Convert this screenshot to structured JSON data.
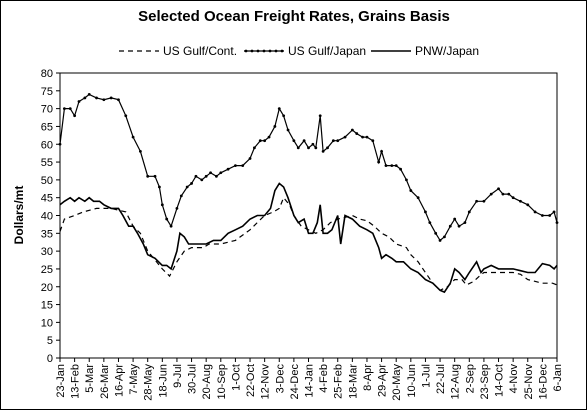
{
  "chart_data": {
    "type": "line",
    "title": "Selected Ocean Freight Rates, Grains Basis",
    "ylabel": "Dollars/mt",
    "xlabel": "",
    "ylim": [
      0,
      80
    ],
    "yticks": [
      0,
      5,
      10,
      15,
      20,
      25,
      30,
      35,
      40,
      45,
      50,
      55,
      60,
      65,
      70,
      75,
      80
    ],
    "grid": false,
    "legend": "top",
    "categories": [
      "23-Jan",
      "13-Feb",
      "5-Mar",
      "26-Mar",
      "16-Apr",
      "7-May",
      "28-May",
      "18-Jun",
      "9-Jul",
      "30-Jul",
      "20-Aug",
      "10-Sep",
      "1-Oct",
      "22-Oct",
      "12-Nov",
      "3-Dec",
      "24-Dec",
      "14-Jan",
      "4-Feb",
      "25-Feb",
      "18-Mar",
      "8-Apr",
      "29-Apr",
      "20-May",
      "10-Jun",
      "1-Jul",
      "22-Jul",
      "12-Aug",
      "2-Sep",
      "23-Sep",
      "14-Oct",
      "4-Nov",
      "25-Nov",
      "16-Dec",
      "6-Jan"
    ],
    "series": [
      {
        "name": "US Gulf/Cont.",
        "style": "dashed",
        "color": "#000000",
        "values": [
          [
            0,
            35.5
          ],
          [
            0.3,
            39
          ],
          [
            1,
            40
          ],
          [
            1.6,
            41
          ],
          [
            2.5,
            42
          ],
          [
            3.5,
            42
          ],
          [
            4.5,
            41
          ],
          [
            5,
            37
          ],
          [
            5.5,
            35
          ],
          [
            6,
            30
          ],
          [
            6.6,
            27
          ],
          [
            7,
            25
          ],
          [
            7.5,
            23
          ],
          [
            8,
            27
          ],
          [
            8.5,
            30
          ],
          [
            9,
            31
          ],
          [
            9.8,
            31
          ],
          [
            10.2,
            32
          ],
          [
            11,
            32
          ],
          [
            12,
            33
          ],
          [
            13,
            36
          ],
          [
            13.5,
            38
          ],
          [
            14,
            40
          ],
          [
            14.6,
            41
          ],
          [
            15,
            42
          ],
          [
            15.3,
            45
          ],
          [
            15.7,
            43
          ],
          [
            16,
            40
          ],
          [
            16.5,
            37
          ],
          [
            17,
            36
          ],
          [
            17.5,
            35
          ],
          [
            18,
            36
          ],
          [
            18.5,
            38
          ],
          [
            19,
            39
          ],
          [
            20,
            40
          ],
          [
            20.5,
            39
          ],
          [
            21,
            38.5
          ],
          [
            21.5,
            37
          ],
          [
            22,
            35
          ],
          [
            22.5,
            34
          ],
          [
            23,
            32
          ],
          [
            23.7,
            31
          ],
          [
            24,
            29
          ],
          [
            24.5,
            27
          ],
          [
            25,
            24
          ],
          [
            25.5,
            21
          ],
          [
            26,
            19
          ],
          [
            26.5,
            20
          ],
          [
            27,
            22
          ],
          [
            27.5,
            22
          ],
          [
            27.8,
            20.5
          ],
          [
            28.3,
            21.5
          ],
          [
            28.7,
            23
          ],
          [
            29,
            24
          ],
          [
            29.5,
            24
          ],
          [
            30,
            24
          ],
          [
            31,
            24
          ],
          [
            31.5,
            23.5
          ],
          [
            32,
            22
          ],
          [
            33,
            21
          ],
          [
            33.7,
            21
          ],
          [
            34,
            20.5
          ]
        ]
      },
      {
        "name": "US Gulf/Japan",
        "style": "marked",
        "color": "#000000",
        "values": [
          [
            0,
            60
          ],
          [
            0.3,
            70
          ],
          [
            0.7,
            70
          ],
          [
            1,
            68
          ],
          [
            1.3,
            72
          ],
          [
            1.7,
            73
          ],
          [
            2,
            74
          ],
          [
            2.5,
            73
          ],
          [
            3,
            72.5
          ],
          [
            3.5,
            73
          ],
          [
            4,
            72.5
          ],
          [
            4.5,
            68
          ],
          [
            5,
            62
          ],
          [
            5.5,
            58
          ],
          [
            6,
            51
          ],
          [
            6.5,
            51
          ],
          [
            6.8,
            48
          ],
          [
            7,
            43
          ],
          [
            7.3,
            39
          ],
          [
            7.6,
            37
          ],
          [
            8,
            42
          ],
          [
            8.3,
            45.5
          ],
          [
            8.7,
            48
          ],
          [
            9,
            49
          ],
          [
            9.3,
            51
          ],
          [
            9.7,
            50
          ],
          [
            10,
            51
          ],
          [
            10.3,
            52
          ],
          [
            10.7,
            51
          ],
          [
            11,
            52
          ],
          [
            11.5,
            53
          ],
          [
            12,
            54
          ],
          [
            12.5,
            54
          ],
          [
            13,
            56
          ],
          [
            13.3,
            59
          ],
          [
            13.7,
            61
          ],
          [
            14,
            61
          ],
          [
            14.3,
            62
          ],
          [
            14.7,
            65
          ],
          [
            15,
            70
          ],
          [
            15.3,
            68
          ],
          [
            15.6,
            64
          ],
          [
            16,
            61
          ],
          [
            16.3,
            59
          ],
          [
            16.7,
            61
          ],
          [
            17,
            59
          ],
          [
            17.3,
            60
          ],
          [
            17.5,
            59
          ],
          [
            17.8,
            68
          ],
          [
            18,
            58
          ],
          [
            18.3,
            59
          ],
          [
            18.7,
            61
          ],
          [
            19,
            61
          ],
          [
            19.5,
            62
          ],
          [
            20,
            64
          ],
          [
            20.3,
            63
          ],
          [
            20.7,
            62
          ],
          [
            21,
            62
          ],
          [
            21.4,
            61
          ],
          [
            21.8,
            55
          ],
          [
            22,
            58
          ],
          [
            22.3,
            54
          ],
          [
            22.7,
            54
          ],
          [
            23,
            54
          ],
          [
            23.3,
            53
          ],
          [
            23.7,
            50
          ],
          [
            24,
            47
          ],
          [
            24.5,
            45
          ],
          [
            25,
            41
          ],
          [
            25.3,
            38
          ],
          [
            25.7,
            35
          ],
          [
            26,
            33
          ],
          [
            26.3,
            34
          ],
          [
            26.7,
            37
          ],
          [
            27,
            39
          ],
          [
            27.3,
            37
          ],
          [
            27.7,
            38
          ],
          [
            28,
            41
          ],
          [
            28.5,
            44
          ],
          [
            29,
            44
          ],
          [
            29.5,
            46
          ],
          [
            30,
            47.5
          ],
          [
            30.3,
            46
          ],
          [
            30.7,
            46
          ],
          [
            31,
            45
          ],
          [
            31.5,
            44
          ],
          [
            32,
            43
          ],
          [
            32.5,
            41
          ],
          [
            33,
            40
          ],
          [
            33.5,
            40
          ],
          [
            33.8,
            41
          ],
          [
            34,
            38
          ]
        ]
      },
      {
        "name": "PNW/Japan",
        "style": "solid",
        "color": "#000000",
        "values": [
          [
            0,
            43
          ],
          [
            0.3,
            44
          ],
          [
            0.7,
            45
          ],
          [
            1,
            44
          ],
          [
            1.3,
            45
          ],
          [
            1.7,
            44
          ],
          [
            2,
            45
          ],
          [
            2.3,
            44
          ],
          [
            2.7,
            44
          ],
          [
            3,
            43
          ],
          [
            3.5,
            42
          ],
          [
            4,
            42
          ],
          [
            4.3,
            40
          ],
          [
            4.7,
            37
          ],
          [
            5,
            37
          ],
          [
            5.3,
            35
          ],
          [
            5.7,
            32
          ],
          [
            6,
            29
          ],
          [
            6.5,
            28
          ],
          [
            7,
            26
          ],
          [
            7.3,
            26
          ],
          [
            7.6,
            25
          ],
          [
            8,
            30
          ],
          [
            8.2,
            35
          ],
          [
            8.5,
            34
          ],
          [
            8.8,
            32
          ],
          [
            9.2,
            32
          ],
          [
            9.6,
            32
          ],
          [
            10,
            32
          ],
          [
            10.5,
            33
          ],
          [
            11,
            33
          ],
          [
            11.5,
            35
          ],
          [
            12,
            36
          ],
          [
            12.5,
            37
          ],
          [
            13,
            39
          ],
          [
            13.5,
            40
          ],
          [
            14,
            40
          ],
          [
            14.4,
            42
          ],
          [
            14.7,
            47
          ],
          [
            15,
            49
          ],
          [
            15.3,
            48
          ],
          [
            15.6,
            45
          ],
          [
            16,
            40
          ],
          [
            16.3,
            38
          ],
          [
            16.7,
            39
          ],
          [
            17,
            35
          ],
          [
            17.3,
            35
          ],
          [
            17.6,
            38
          ],
          [
            17.8,
            43
          ],
          [
            18,
            35
          ],
          [
            18.3,
            35
          ],
          [
            18.6,
            36
          ],
          [
            19,
            40
          ],
          [
            19.2,
            32
          ],
          [
            19.5,
            40
          ],
          [
            20,
            39
          ],
          [
            20.5,
            37
          ],
          [
            21,
            36
          ],
          [
            21.4,
            35
          ],
          [
            21.8,
            31
          ],
          [
            22,
            28
          ],
          [
            22.3,
            29
          ],
          [
            22.7,
            28
          ],
          [
            23,
            27
          ],
          [
            23.5,
            27
          ],
          [
            24,
            25
          ],
          [
            24.5,
            24
          ],
          [
            25,
            22
          ],
          [
            25.5,
            21
          ],
          [
            26,
            19
          ],
          [
            26.3,
            18.5
          ],
          [
            26.7,
            21
          ],
          [
            27,
            25
          ],
          [
            27.3,
            24
          ],
          [
            27.7,
            22
          ],
          [
            28,
            24
          ],
          [
            28.5,
            27
          ],
          [
            28.8,
            24
          ],
          [
            29,
            25
          ],
          [
            29.5,
            26
          ],
          [
            30,
            25
          ],
          [
            30.5,
            25
          ],
          [
            31,
            25
          ],
          [
            31.5,
            24.5
          ],
          [
            32,
            24
          ],
          [
            32.5,
            24
          ],
          [
            33,
            26.5
          ],
          [
            33.5,
            26
          ],
          [
            33.8,
            25
          ],
          [
            34,
            26
          ]
        ]
      }
    ]
  }
}
